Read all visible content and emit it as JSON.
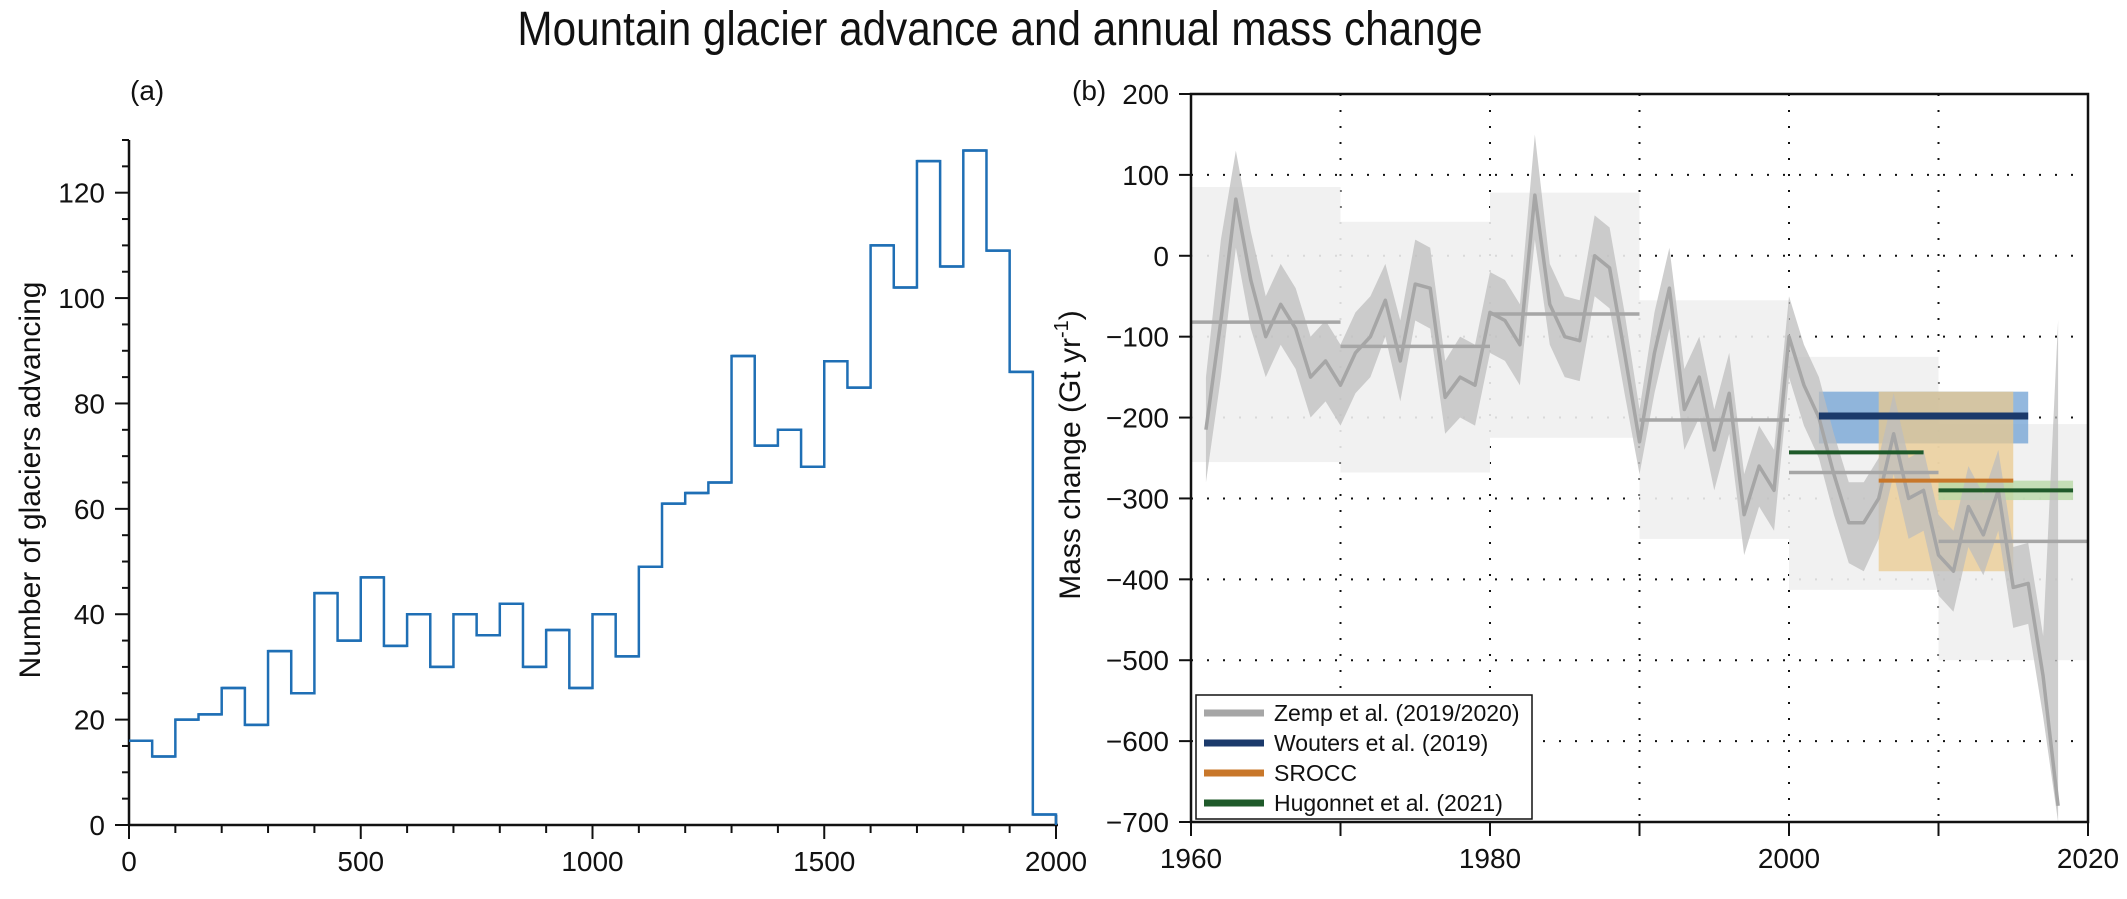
{
  "title": "Mountain glacier advance and annual mass change",
  "colors": {
    "hist": "#1f6fb5",
    "zemp": "#a6a6a6",
    "zemp_band": "#bdbdbd",
    "zemp_box": "#f0f0f0",
    "wouters": "#1b3a6b",
    "wouters_box": "#6fa0d3",
    "srocc": "#c8772a",
    "srocc_box": "#e9c98f",
    "hugonnet": "#1f5a2a",
    "hugonnet_box": "#b9d9a8"
  },
  "chart_data": [
    {
      "panel": "(a)",
      "type": "step",
      "xlabel": "",
      "ylabel": "Number of glaciers advancing",
      "xlim": [
        0,
        2000
      ],
      "ylim": [
        0,
        130
      ],
      "xticks": [
        "0",
        "500",
        "1000",
        "1500",
        "2000"
      ],
      "yticks": [
        "0",
        "20",
        "40",
        "60",
        "80",
        "100",
        "120"
      ],
      "bin_width": 50,
      "bin_starts": [
        0,
        50,
        100,
        150,
        200,
        250,
        300,
        350,
        400,
        450,
        500,
        550,
        600,
        650,
        700,
        750,
        800,
        850,
        900,
        950,
        1000,
        1050,
        1100,
        1150,
        1200,
        1250,
        1300,
        1350,
        1400,
        1450,
        1500,
        1550,
        1600,
        1650,
        1700,
        1750,
        1800,
        1850,
        1900,
        1950
      ],
      "values": [
        16,
        13,
        20,
        21,
        26,
        19,
        33,
        25,
        44,
        35,
        47,
        34,
        40,
        30,
        40,
        36,
        42,
        30,
        37,
        26,
        40,
        32,
        49,
        61,
        63,
        65,
        89,
        72,
        75,
        68,
        88,
        83,
        110,
        102,
        126,
        106,
        128,
        109,
        86,
        2
      ]
    },
    {
      "panel": "(b)",
      "type": "line",
      "xlabel": "",
      "ylabel": "Mass change (Gt yr",
      "ylabel_sup": "-1",
      "ylabel_close": ")",
      "xlim": [
        1960,
        2020
      ],
      "ylim": [
        -700,
        200
      ],
      "xticks": [
        "1960",
        "1980",
        "2000",
        "2020"
      ],
      "yticks": [
        "−700",
        "−600",
        "−500",
        "−400",
        "−300",
        "−200",
        "−100",
        "0",
        "100",
        "200"
      ],
      "zemp_annual": {
        "x": [
          1961,
          1962,
          1963,
          1964,
          1965,
          1966,
          1967,
          1968,
          1969,
          1970,
          1971,
          1972,
          1973,
          1974,
          1975,
          1976,
          1977,
          1978,
          1979,
          1980,
          1981,
          1982,
          1983,
          1984,
          1985,
          1986,
          1987,
          1988,
          1989,
          1990,
          1991,
          1992,
          1993,
          1994,
          1995,
          1996,
          1997,
          1998,
          1999,
          2000,
          2001,
          2002,
          2003,
          2004,
          2005,
          2006,
          2007,
          2008,
          2009,
          2010,
          2011,
          2012,
          2013,
          2014,
          2015,
          2016,
          2017,
          2018
        ],
        "y": [
          -215,
          -80,
          70,
          -30,
          -100,
          -60,
          -90,
          -150,
          -130,
          -160,
          -120,
          -100,
          -55,
          -130,
          -35,
          -40,
          -175,
          -150,
          -160,
          -70,
          -80,
          -110,
          75,
          -60,
          -100,
          -105,
          0,
          -15,
          -120,
          -230,
          -120,
          -40,
          -190,
          -150,
          -240,
          -170,
          -320,
          -260,
          -290,
          -100,
          -160,
          -200,
          -270,
          -330,
          -330,
          -300,
          -220,
          -300,
          -290,
          -370,
          -390,
          -310,
          -345,
          -290,
          -410,
          -405,
          -520,
          -680
        ],
        "lower": [
          -280,
          -150,
          10,
          -90,
          -150,
          -110,
          -140,
          -200,
          -180,
          -210,
          -170,
          -150,
          -100,
          -180,
          -80,
          -90,
          -220,
          -200,
          -210,
          -120,
          -130,
          -160,
          20,
          -110,
          -150,
          -155,
          -50,
          -65,
          -170,
          -270,
          -170,
          -90,
          -240,
          -200,
          -290,
          -220,
          -370,
          -310,
          -340,
          -150,
          -210,
          -250,
          -320,
          -380,
          -390,
          -350,
          -270,
          -350,
          -340,
          -420,
          -440,
          -360,
          -395,
          -340,
          -460,
          -455,
          -570,
          -700
        ],
        "upper": [
          -150,
          20,
          130,
          30,
          -50,
          -10,
          -40,
          -100,
          -80,
          -110,
          -70,
          -50,
          -10,
          -80,
          20,
          10,
          -130,
          -100,
          -110,
          -20,
          -30,
          -60,
          150,
          -10,
          -50,
          -55,
          50,
          35,
          -70,
          -190,
          -70,
          10,
          -140,
          -100,
          -190,
          -120,
          -270,
          -210,
          -240,
          -50,
          -110,
          -150,
          -220,
          -280,
          -280,
          -250,
          -170,
          -250,
          -240,
          -320,
          -340,
          -260,
          -295,
          -240,
          -360,
          -355,
          -470,
          -80
        ]
      },
      "zemp_decadal": [
        {
          "start": 1960,
          "end": 1970,
          "mean": -82,
          "low": -255,
          "high": 85
        },
        {
          "start": 1970,
          "end": 1980,
          "mean": -112,
          "low": -268,
          "high": 42
        },
        {
          "start": 1980,
          "end": 1990,
          "mean": -72,
          "low": -225,
          "high": 78
        },
        {
          "start": 1990,
          "end": 2000,
          "mean": -203,
          "low": -350,
          "high": -55
        },
        {
          "start": 2000,
          "end": 2010,
          "mean": -268,
          "low": -413,
          "high": -125
        },
        {
          "start": 2010,
          "end": 2020,
          "mean": -353,
          "low": -500,
          "high": -208
        }
      ],
      "wouters": {
        "start": 2002,
        "end": 2016,
        "mean": -198,
        "low": -232,
        "high": -168
      },
      "srocc": {
        "start": 2006,
        "end": 2015,
        "mean": -278,
        "low": -390,
        "high": -168
      },
      "hugonnet": [
        {
          "start": 2000,
          "end": 2009,
          "mean": -243
        },
        {
          "start": 2010,
          "end": 2019,
          "mean": -290,
          "low": -302,
          "high": -278
        }
      ],
      "legend": [
        {
          "label": "Zemp et al. (2019/2020)",
          "color_key": "zemp"
        },
        {
          "label": "Wouters et al. (2019)",
          "color_key": "wouters"
        },
        {
          "label": "SROCC",
          "color_key": "srocc"
        },
        {
          "label": "Hugonnet et al. (2021)",
          "color_key": "hugonnet"
        }
      ],
      "legend_position": "bottom-left"
    }
  ]
}
